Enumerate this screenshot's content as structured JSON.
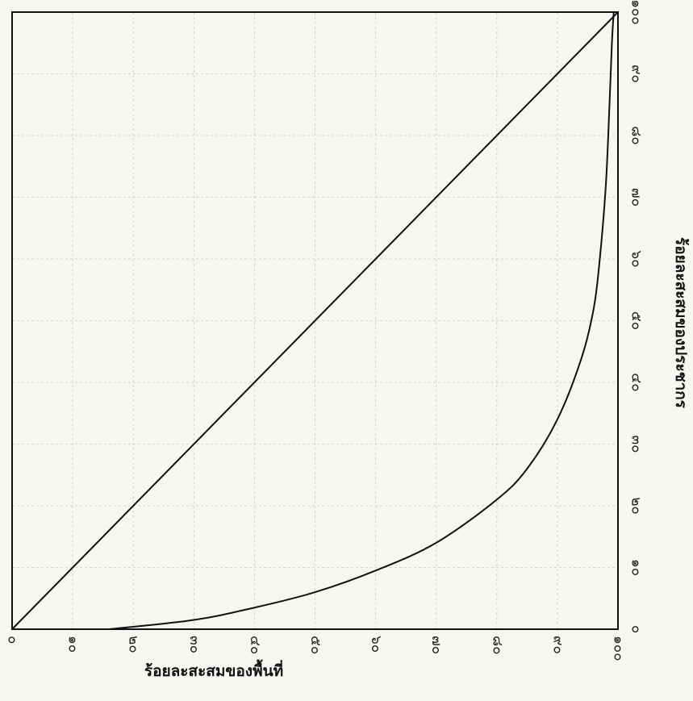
{
  "chart_data": {
    "type": "line",
    "xlabel": "ร้อยละสะสมของพื้นที่",
    "ylabel": "ร้อยละสะสมของประชากร",
    "xlim": [
      0,
      100
    ],
    "ylim": [
      0,
      100
    ],
    "grid": true,
    "x_tick_labels": [
      "๐",
      "๑๐",
      "๒๐",
      "๓๐",
      "๔๐",
      "๕๐",
      "๖๐",
      "๗๐",
      "๘๐",
      "๙๐",
      "๑๐๐"
    ],
    "y_tick_labels": [
      "๐",
      "๑๐",
      "๒๐",
      "๓๐",
      "๔๐",
      "๕๐",
      "๖๐",
      "๗๐",
      "๘๐",
      "๙๐",
      "๑๐๐"
    ],
    "series": [
      {
        "values": [
          [
            0,
            0
          ],
          [
            100,
            100
          ]
        ]
      },
      {
        "values": [
          [
            16,
            0
          ],
          [
            30,
            1.5
          ],
          [
            40,
            3.5
          ],
          [
            50,
            6
          ],
          [
            60,
            9.5
          ],
          [
            70,
            14
          ],
          [
            80,
            21
          ],
          [
            85,
            26
          ],
          [
            90,
            34
          ],
          [
            94,
            44
          ],
          [
            96,
            52
          ],
          [
            97,
            60
          ],
          [
            98,
            72
          ],
          [
            98.6,
            85
          ],
          [
            99,
            95
          ],
          [
            99.3,
            100
          ]
        ]
      }
    ]
  },
  "colors": {
    "background": "#f7f6f2",
    "line": "#111111",
    "grid": "#d2d2d2"
  }
}
